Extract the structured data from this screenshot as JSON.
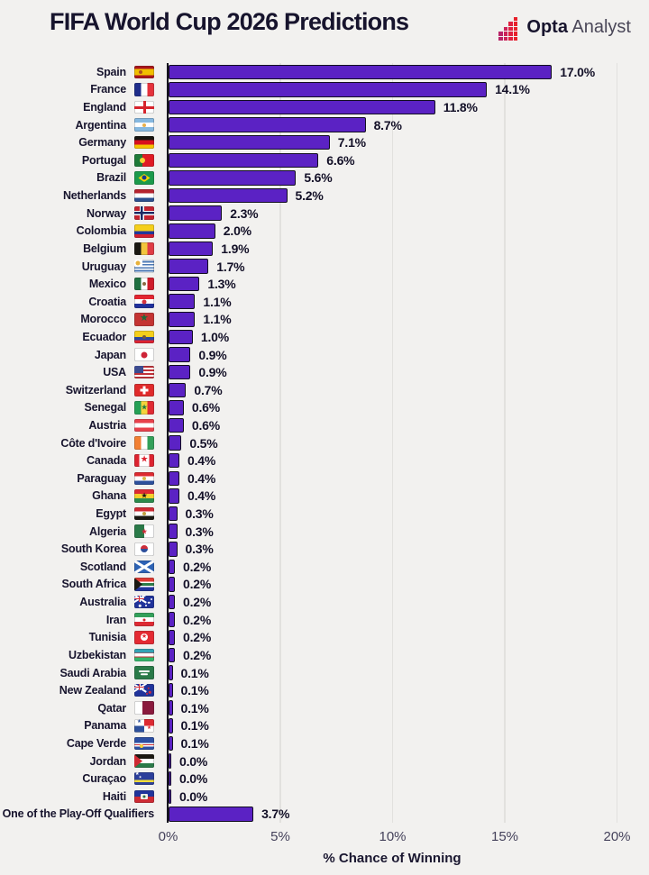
{
  "logo": {
    "opta": "Opta",
    "analyst": "Analyst"
  },
  "colors": {
    "background": "#f2f1ef",
    "bar": "#5B22C4",
    "bar_border": "#120E20",
    "text_dark": "#17142d",
    "grid_line": "#e2e1de",
    "axis_line": "#16131f",
    "tick_text": "#45425b",
    "logo_squares": [
      "#B82468",
      "#CC2258",
      "#DE2140",
      "#E8212B"
    ]
  },
  "chart_data": {
    "type": "bar",
    "orientation": "horizontal",
    "title": "FIFA World Cup 2026 Predictions",
    "xlabel": "% Chance of Winning",
    "xlim": [
      0,
      20
    ],
    "x_ticks": [
      "0%",
      "5%",
      "10%",
      "15%",
      "20%"
    ],
    "grid": "vertical",
    "legend": "none",
    "categories": [
      "Spain",
      "France",
      "England",
      "Argentina",
      "Germany",
      "Portugal",
      "Brazil",
      "Netherlands",
      "Norway",
      "Colombia",
      "Belgium",
      "Uruguay",
      "Mexico",
      "Croatia",
      "Morocco",
      "Ecuador",
      "Japan",
      "USA",
      "Switzerland",
      "Senegal",
      "Austria",
      "Côte d'Ivoire",
      "Canada",
      "Paraguay",
      "Ghana",
      "Egypt",
      "Algeria",
      "South Korea",
      "Scotland",
      "South Africa",
      "Australia",
      "Iran",
      "Tunisia",
      "Uzbekistan",
      "Saudi Arabia",
      "New Zealand",
      "Qatar",
      "Panama",
      "Cape Verde",
      "Jordan",
      "Curaçao",
      "Haiti",
      "One of the Play-Off Qualifiers"
    ],
    "values": [
      17.0,
      14.1,
      11.8,
      8.7,
      7.1,
      6.6,
      5.6,
      5.2,
      2.3,
      2.0,
      1.9,
      1.7,
      1.3,
      1.1,
      1.1,
      1.0,
      0.9,
      0.9,
      0.7,
      0.6,
      0.6,
      0.5,
      0.4,
      0.4,
      0.4,
      0.3,
      0.3,
      0.3,
      0.2,
      0.2,
      0.2,
      0.2,
      0.2,
      0.2,
      0.1,
      0.1,
      0.1,
      0.1,
      0.1,
      0.0,
      0.0,
      0.0,
      3.7
    ],
    "value_labels": [
      "17.0%",
      "14.1%",
      "11.8%",
      "8.7%",
      "7.1%",
      "6.6%",
      "5.6%",
      "5.2%",
      "2.3%",
      "2.0%",
      "1.9%",
      "1.7%",
      "1.3%",
      "1.1%",
      "1.1%",
      "1.0%",
      "0.9%",
      "0.9%",
      "0.7%",
      "0.6%",
      "0.6%",
      "0.5%",
      "0.4%",
      "0.4%",
      "0.4%",
      "0.3%",
      "0.3%",
      "0.3%",
      "0.2%",
      "0.2%",
      "0.2%",
      "0.2%",
      "0.2%",
      "0.2%",
      "0.1%",
      "0.1%",
      "0.1%",
      "0.1%",
      "0.1%",
      "0.0%",
      "0.0%",
      "0.0%",
      "3.7%"
    ]
  },
  "flags": {
    "Spain": {
      "d": "h",
      "s": [
        [
          "#AA151B",
          1
        ],
        [
          "#F1BF00",
          2
        ],
        [
          "#AA151B",
          1
        ]
      ],
      "e": [
        {
          "t": "dot",
          "c": "#B0501F",
          "x": "33%",
          "s": 4
        }
      ]
    },
    "France": {
      "d": "v",
      "s": [
        [
          "#1F2D8A",
          1
        ],
        [
          "#FFFFFF",
          1
        ],
        [
          "#E5323C",
          1
        ]
      ]
    },
    "England": {
      "d": "h",
      "s": [
        [
          "#FFFFFF",
          1
        ]
      ],
      "e": [
        {
          "t": "cross",
          "c": "#D6242C",
          "th": 3
        }
      ]
    },
    "Argentina": {
      "d": "h",
      "s": [
        [
          "#85B8E0",
          1
        ],
        [
          "#FFFFFF",
          1
        ],
        [
          "#85B8E0",
          1
        ]
      ],
      "e": [
        {
          "t": "dot",
          "c": "#E8B04B",
          "s": 4
        }
      ]
    },
    "Germany": {
      "d": "h",
      "s": [
        [
          "#17140F",
          1
        ],
        [
          "#D8101E",
          1
        ],
        [
          "#F5C400",
          1
        ]
      ]
    },
    "Portugal": {
      "d": "v",
      "s": [
        [
          "#1E7A38",
          2
        ],
        [
          "#E01A23",
          3
        ]
      ],
      "e": [
        {
          "t": "dot",
          "c": "#F5D335",
          "x": "40%",
          "s": 6
        }
      ]
    },
    "Brazil": {
      "d": "h",
      "s": [
        [
          "#1B9A4B",
          1
        ]
      ],
      "e": [
        {
          "t": "diamond",
          "c": "#F5D300",
          "w": 13,
          "h": 9
        },
        {
          "t": "dot",
          "c": "#173A8F",
          "s": 5
        }
      ]
    },
    "Netherlands": {
      "d": "h",
      "s": [
        [
          "#B6242F",
          1
        ],
        [
          "#FFFFFF",
          1
        ],
        [
          "#2C4F8F",
          1
        ]
      ]
    },
    "Norway": {
      "d": "h",
      "s": [
        [
          "#C42330",
          1
        ]
      ],
      "e": [
        {
          "t": "cross",
          "c": "#FFFFFF",
          "th": 5,
          "x": "38%"
        },
        {
          "t": "cross",
          "c": "#1B2A63",
          "th": 2.5,
          "x": "38%"
        }
      ]
    },
    "Colombia": {
      "d": "h",
      "s": [
        [
          "#F5CF1B",
          2
        ],
        [
          "#20379B",
          1
        ],
        [
          "#D21F30",
          1
        ]
      ]
    },
    "Belgium": {
      "d": "v",
      "s": [
        [
          "#1A1812",
          1
        ],
        [
          "#F2C53C",
          1
        ],
        [
          "#E03C45",
          1
        ]
      ]
    },
    "Uruguay": {
      "d": "h",
      "s": [
        [
          "#FFFFFF",
          1
        ],
        [
          "#4B78B5",
          1
        ],
        [
          "#FFFFFF",
          1
        ],
        [
          "#4B78B5",
          1
        ],
        [
          "#FFFFFF",
          1
        ],
        [
          "#4B78B5",
          1
        ],
        [
          "#FFFFFF",
          1
        ],
        [
          "#4B78B5",
          1
        ],
        [
          "#FFFFFF",
          1
        ]
      ],
      "e": [
        {
          "t": "canton",
          "w": "42%",
          "h": "46%",
          "f": {
            "d": "h",
            "s": [
              [
                "#FFFFFF",
                1
              ]
            ]
          }
        },
        {
          "t": "dot",
          "c": "#E8B23C",
          "x": "20%",
          "y": "23%",
          "s": 5
        }
      ]
    },
    "Mexico": {
      "d": "v",
      "s": [
        [
          "#207040",
          1
        ],
        [
          "#FFFFFF",
          1
        ],
        [
          "#CE1B2A",
          1
        ]
      ],
      "e": [
        {
          "t": "dot",
          "c": "#8A6A43",
          "s": 4
        }
      ]
    },
    "Croatia": {
      "d": "h",
      "s": [
        [
          "#E32530",
          1
        ],
        [
          "#FFFFFF",
          1
        ],
        [
          "#20319B",
          1
        ]
      ],
      "e": [
        {
          "t": "dot",
          "c": "#D43540",
          "s": 5
        }
      ]
    },
    "Morocco": {
      "d": "h",
      "s": [
        [
          "#C43432",
          1
        ]
      ],
      "e": [
        {
          "t": "star",
          "c": "#1E6B38",
          "s": 8
        }
      ]
    },
    "Ecuador": {
      "d": "h",
      "s": [
        [
          "#F5CF1B",
          2
        ],
        [
          "#2B48A0",
          1
        ],
        [
          "#DD2230",
          1
        ]
      ],
      "e": [
        {
          "t": "dot",
          "c": "#7A5A38",
          "s": 4
        }
      ]
    },
    "Japan": {
      "d": "h",
      "s": [
        [
          "#FFFFFF",
          1
        ]
      ],
      "e": [
        {
          "t": "dot",
          "c": "#CE2438",
          "s": 7
        }
      ]
    },
    "USA": {
      "d": "h",
      "s": [
        [
          "#C03038",
          1
        ],
        [
          "#FFFFFF",
          1
        ],
        [
          "#C03038",
          1
        ],
        [
          "#FFFFFF",
          1
        ],
        [
          "#C03038",
          1
        ],
        [
          "#FFFFFF",
          1
        ],
        [
          "#C03038",
          1
        ]
      ],
      "e": [
        {
          "t": "canton",
          "w": "45%",
          "h": "55%",
          "f": {
            "d": "h",
            "s": [
              [
                "#3C4B8F",
                1
              ]
            ]
          }
        }
      ]
    },
    "Switzerland": {
      "d": "h",
      "s": [
        [
          "#E02A2A",
          1
        ]
      ],
      "e": [
        {
          "t": "cross",
          "c": "#FFFFFF",
          "th": 3,
          "len": 9
        }
      ]
    },
    "Senegal": {
      "d": "v",
      "s": [
        [
          "#25A055",
          1
        ],
        [
          "#F5D33C",
          1
        ],
        [
          "#E02A33",
          1
        ]
      ],
      "e": [
        {
          "t": "star",
          "c": "#1E7A40",
          "s": 6
        }
      ]
    },
    "Austria": {
      "d": "h",
      "s": [
        [
          "#E8414C",
          1
        ],
        [
          "#FFFFFF",
          1
        ],
        [
          "#E8414C",
          1
        ]
      ]
    },
    "Côte d'Ivoire": {
      "d": "v",
      "s": [
        [
          "#F28033",
          1
        ],
        [
          "#FFFFFF",
          1
        ],
        [
          "#33A05A",
          1
        ]
      ]
    },
    "Canada": {
      "d": "v",
      "s": [
        [
          "#DD2330",
          1
        ],
        [
          "#FFFFFF",
          2
        ],
        [
          "#DD2330",
          1
        ]
      ],
      "e": [
        {
          "t": "star",
          "c": "#DD2330",
          "s": 7
        }
      ]
    },
    "Paraguay": {
      "d": "h",
      "s": [
        [
          "#DD2A30",
          1
        ],
        [
          "#FFFFFF",
          1
        ],
        [
          "#2C4F9B",
          1
        ]
      ],
      "e": [
        {
          "t": "dot",
          "c": "#D8B84B",
          "s": 4
        }
      ]
    },
    "Ghana": {
      "d": "h",
      "s": [
        [
          "#DD2A33",
          1
        ],
        [
          "#F5CF2B",
          1
        ],
        [
          "#2A8A4B",
          1
        ]
      ],
      "e": [
        {
          "t": "star",
          "c": "#1A1812",
          "s": 6
        }
      ]
    },
    "Egypt": {
      "d": "h",
      "s": [
        [
          "#CE2A33",
          1
        ],
        [
          "#FFFFFF",
          1
        ],
        [
          "#1A1812",
          1
        ]
      ],
      "e": [
        {
          "t": "dot",
          "c": "#C0A040",
          "s": 4
        }
      ]
    },
    "Algeria": {
      "d": "v",
      "s": [
        [
          "#2A7A48",
          1
        ],
        [
          "#FFFFFF",
          1
        ]
      ],
      "e": [
        {
          "t": "star",
          "c": "#D22A38",
          "s": 6
        }
      ]
    },
    "South Korea": {
      "d": "h",
      "s": [
        [
          "#FFFFFF",
          1
        ]
      ],
      "e": [
        {
          "t": "dot",
          "c": "#CE2E3A",
          "c2": "#2C4F9B",
          "s": 8
        }
      ]
    },
    "Scotland": {
      "d": "h",
      "s": [
        [
          "#2C62B5",
          1
        ]
      ],
      "e": [
        {
          "t": "saltire",
          "c": "#FFFFFF",
          "th": 2.5
        }
      ]
    },
    "South Africa": {
      "d": "h",
      "s": [
        [
          "#DD3A33",
          4
        ],
        [
          "#FFFFFF",
          1
        ],
        [
          "#2A7A48",
          3
        ],
        [
          "#FFFFFF",
          1
        ],
        [
          "#20339B",
          4
        ]
      ],
      "e": [
        {
          "t": "tri",
          "c": "#1A1812",
          "w": 9
        }
      ]
    },
    "Australia": {
      "d": "h",
      "s": [
        [
          "#20339B",
          1
        ]
      ],
      "e": [
        {
          "t": "canton",
          "w": "50%",
          "h": "50%",
          "f": {
            "d": "h",
            "s": [
              [
                "#20339B",
                1
              ]
            ],
            "e": [
              {
                "t": "saltire",
                "c": "#FFFFFF",
                "th": 1.5
              },
              {
                "t": "cross",
                "c": "#FFFFFF",
                "th": 2
              },
              {
                "t": "cross",
                "c": "#CE2A38",
                "th": 1
              }
            ]
          }
        },
        {
          "t": "dot",
          "c": "#FFFFFF",
          "x": "73%",
          "y": "55%",
          "s": 2.5
        },
        {
          "t": "dot",
          "c": "#FFFFFF",
          "x": "85%",
          "y": "30%",
          "s": 2
        },
        {
          "t": "dot",
          "c": "#FFFFFF",
          "x": "60%",
          "y": "80%",
          "s": 2
        },
        {
          "t": "dot",
          "c": "#FFFFFF",
          "x": "28%",
          "y": "78%",
          "s": 2.5
        }
      ]
    },
    "Iran": {
      "d": "h",
      "s": [
        [
          "#33A05A",
          1
        ],
        [
          "#FFFFFF",
          1
        ],
        [
          "#DD2A33",
          1
        ]
      ],
      "e": [
        {
          "t": "dot",
          "c": "#CE2A33",
          "s": 3
        }
      ]
    },
    "Tunisia": {
      "d": "h",
      "s": [
        [
          "#E42A33",
          1
        ]
      ],
      "e": [
        {
          "t": "dot",
          "c": "#FFFFFF",
          "s": 8
        },
        {
          "t": "star",
          "c": "#E42A33",
          "s": 5
        }
      ]
    },
    "Uzbekistan": {
      "d": "h",
      "s": [
        [
          "#33A3B5",
          5
        ],
        [
          "#CE2A33",
          1
        ],
        [
          "#FFFFFF",
          4
        ],
        [
          "#CE2A33",
          1
        ],
        [
          "#33B56A",
          5
        ]
      ]
    },
    "Saudi Arabia": {
      "d": "h",
      "s": [
        [
          "#2A7A48",
          1
        ]
      ],
      "e": [
        {
          "t": "bar",
          "c": "#FFFFFF",
          "w": 12,
          "h": 2,
          "y": "42%"
        },
        {
          "t": "bar",
          "c": "#FFFFFF",
          "w": 8,
          "h": 1.5,
          "y": "62%"
        }
      ]
    },
    "New Zealand": {
      "d": "h",
      "s": [
        [
          "#20339B",
          1
        ]
      ],
      "e": [
        {
          "t": "canton",
          "w": "50%",
          "h": "50%",
          "f": {
            "d": "h",
            "s": [
              [
                "#20339B",
                1
              ]
            ],
            "e": [
              {
                "t": "saltire",
                "c": "#FFFFFF",
                "th": 1.5
              },
              {
                "t": "cross",
                "c": "#FFFFFF",
                "th": 2
              },
              {
                "t": "cross",
                "c": "#CE2A38",
                "th": 1
              }
            ]
          }
        },
        {
          "t": "dot",
          "c": "#CE2A38",
          "x": "72%",
          "y": "35%",
          "s": 2.5
        },
        {
          "t": "dot",
          "c": "#CE2A38",
          "x": "78%",
          "y": "65%",
          "s": 2.5
        },
        {
          "t": "dot",
          "c": "#CE2A38",
          "x": "62%",
          "y": "75%",
          "s": 2
        }
      ]
    },
    "Qatar": {
      "d": "v",
      "s": [
        [
          "#FFFFFF",
          2
        ],
        [
          "#8A1A3D",
          3
        ]
      ]
    },
    "Panama": {
      "d": "q",
      "s": [
        [
          "#FFFFFF",
          1
        ],
        [
          "#DD2A33",
          1
        ],
        [
          "#2C4F9B",
          1
        ],
        [
          "#FFFFFF",
          1
        ]
      ],
      "e": [
        {
          "t": "star",
          "c": "#2C4F9B",
          "x": "25%",
          "y": "25%",
          "s": 4
        },
        {
          "t": "star",
          "c": "#DD2A33",
          "x": "75%",
          "y": "75%",
          "s": 4
        }
      ]
    },
    "Cape Verde": {
      "d": "h",
      "s": [
        [
          "#2C4FA3",
          6
        ],
        [
          "#FFFFFF",
          1.2
        ],
        [
          "#CE2A33",
          1.2
        ],
        [
          "#FFFFFF",
          1.2
        ],
        [
          "#2C4FA3",
          3.4
        ]
      ],
      "e": [
        {
          "t": "dot",
          "c": "#F5D33C",
          "x": "35%",
          "y": "70%",
          "s": 4
        }
      ]
    },
    "Jordan": {
      "d": "h",
      "s": [
        [
          "#1A1812",
          1
        ],
        [
          "#FFFFFF",
          1
        ],
        [
          "#2A7A48",
          1
        ]
      ],
      "e": [
        {
          "t": "tri",
          "c": "#CE2A33",
          "w": 9
        }
      ]
    },
    "Curaçao": {
      "d": "h",
      "s": [
        [
          "#2C3F9B",
          8
        ],
        [
          "#F2DD3C",
          2
        ],
        [
          "#2C3F9B",
          3
        ]
      ],
      "e": [
        {
          "t": "star",
          "c": "#FFFFFF",
          "x": "15%",
          "y": "22%",
          "s": 4
        },
        {
          "t": "star",
          "c": "#FFFFFF",
          "x": "30%",
          "y": "42%",
          "s": 3
        }
      ]
    },
    "Haiti": {
      "d": "h",
      "s": [
        [
          "#20339B",
          1
        ],
        [
          "#CE2A33",
          1
        ]
      ],
      "e": [
        {
          "t": "bar",
          "c": "#F2EFE8",
          "w": 8,
          "h": 6
        },
        {
          "t": "dot",
          "c": "#2A6A48",
          "s": 3
        }
      ]
    }
  }
}
